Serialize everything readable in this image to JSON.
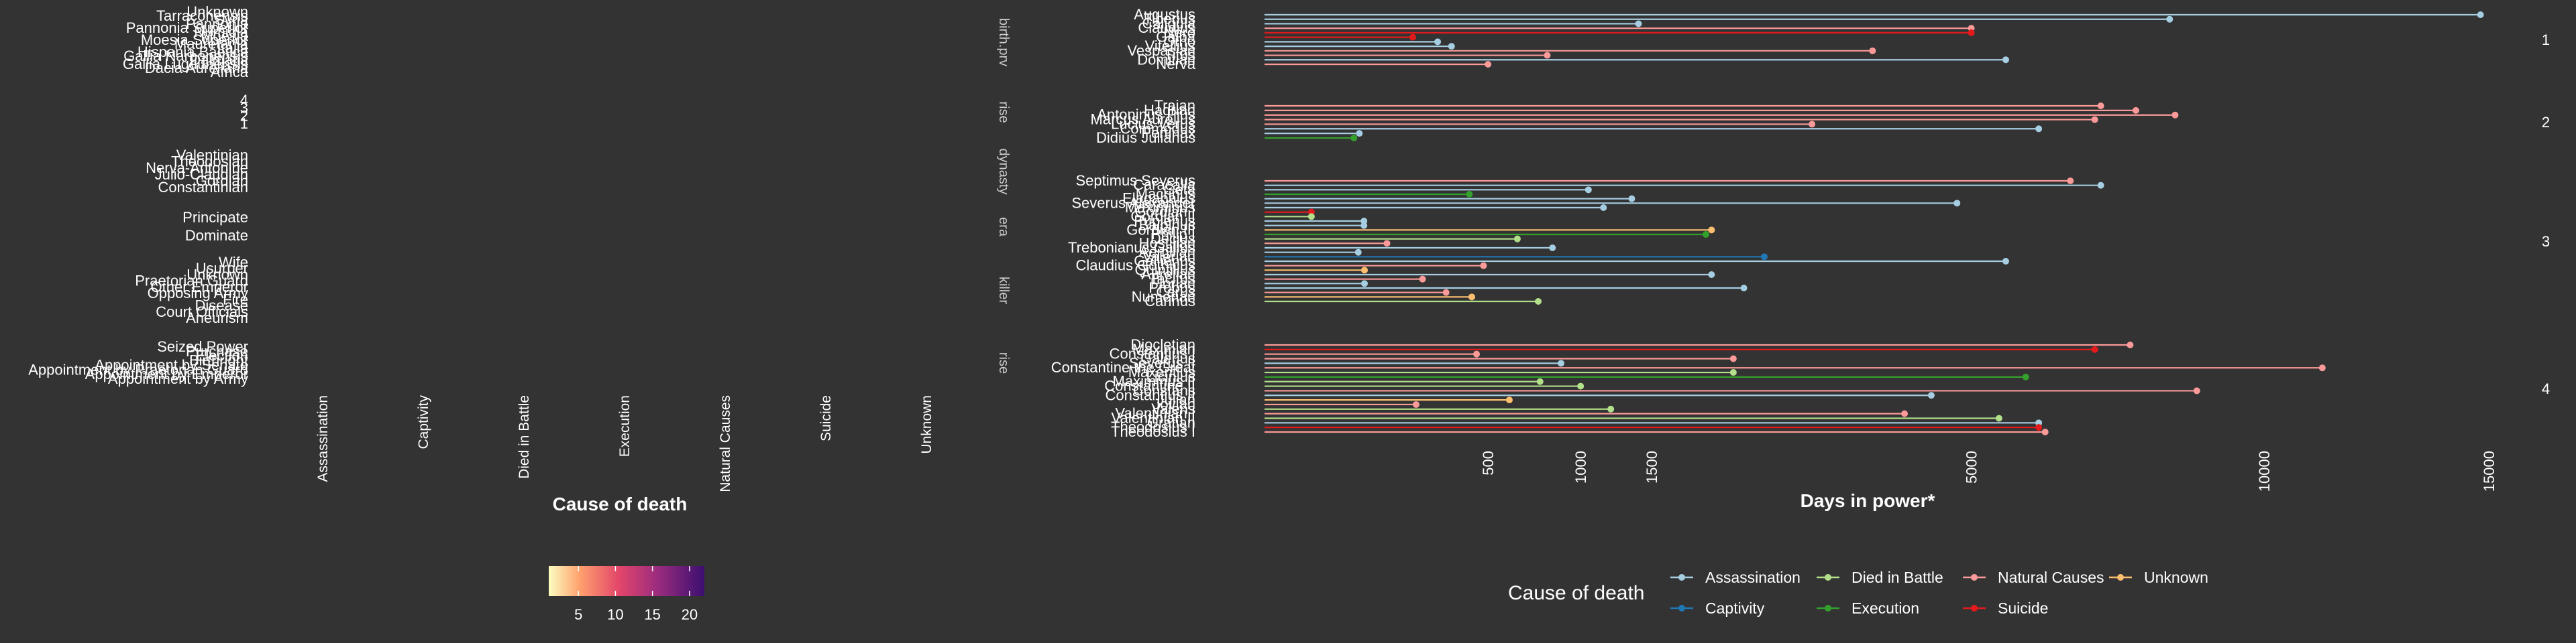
{
  "chart_data": [
    {
      "type": "heatmap",
      "xlabel": "Cause of death",
      "x_categories": [
        "Assassination",
        "Captivity",
        "Died in Battle",
        "Execution",
        "Natural Causes",
        "Suicide",
        "Unknown"
      ],
      "facets": [
        {
          "strip": "birth.prv",
          "labels": [
            "Unknown",
            "Tarraconensis",
            "Syria",
            "Pannonia",
            "Pannonia Superior",
            "Numidia",
            "Moesia",
            "Moesia Superior",
            "Mauretania",
            "Italia",
            "Hispania Baetica",
            "Gallia Narbonensis",
            "Dalmatia",
            "Gallia Lugdunensis",
            "Dacia Aureliana",
            "Africa"
          ]
        },
        {
          "strip": "rise",
          "labels": [
            "4",
            "3",
            "2",
            "1"
          ]
        },
        {
          "strip": "dynasty",
          "labels": [
            "Valentinian",
            "Theodosian",
            "Nerva-Antonine",
            "Julio-Claudian",
            "Gordian",
            "Constantinian"
          ]
        },
        {
          "strip": "era",
          "labels": [
            "Principate",
            "Dominate"
          ]
        },
        {
          "strip": "killer",
          "labels": [
            "Wife",
            "Usurper",
            "Unknown",
            "Praetorian Guard",
            "Other Emperor",
            "Opposing Army",
            "Fire",
            "Disease",
            "Court Officials",
            "Aneurism"
          ]
        },
        {
          "strip": "rise",
          "labels": [
            "Seized Power",
            "Purchase",
            "Election",
            "Birthright",
            "Appointment by Senate",
            "Appointment by Praetorian Guard",
            "Appointment by Emperor",
            "Appointment by Army"
          ]
        }
      ],
      "colorbar": {
        "ticks": [
          5,
          10,
          15,
          20
        ],
        "min": 1,
        "max": 22
      }
    },
    {
      "type": "lollipop",
      "xlabel": "Days in power*",
      "x_scale": "sqrt",
      "x_ticks": [
        500,
        1000,
        1500,
        5000,
        10000,
        15000
      ],
      "x_range": [
        0,
        15500
      ],
      "legend_title": "Cause of death",
      "categories": [
        {
          "name": "Assassination",
          "color": "#a6cee3"
        },
        {
          "name": "Captivity",
          "color": "#1f78b4"
        },
        {
          "name": "Died in Battle",
          "color": "#b2df8a"
        },
        {
          "name": "Execution",
          "color": "#33a02c"
        },
        {
          "name": "Natural Causes",
          "color": "#fb9a99"
        },
        {
          "name": "Suicide",
          "color": "#e31a1c"
        },
        {
          "name": "Unknown",
          "color": "#fdbf6f"
        }
      ],
      "facets": [
        {
          "strip": "1",
          "emperors": [
            {
              "name": "Augustus",
              "days": 14800,
              "cause": "Assassination"
            },
            {
              "name": "Tiberius",
              "days": 8200,
              "cause": "Assassination"
            },
            {
              "name": "Caligula",
              "days": 1400,
              "cause": "Assassination"
            },
            {
              "name": "Claudius",
              "days": 5000,
              "cause": "Natural Causes"
            },
            {
              "name": "Nero",
              "days": 5000,
              "cause": "Suicide"
            },
            {
              "name": "Galba",
              "days": 220,
              "cause": "Suicide"
            },
            {
              "name": "Otho",
              "days": 300,
              "cause": "Assassination"
            },
            {
              "name": "Vitellius",
              "days": 350,
              "cause": "Assassination"
            },
            {
              "name": "Vespasian",
              "days": 3700,
              "cause": "Natural Causes"
            },
            {
              "name": "Titus",
              "days": 800,
              "cause": "Natural Causes"
            },
            {
              "name": "Domitian",
              "days": 5500,
              "cause": "Assassination"
            },
            {
              "name": "Nerva",
              "days": 500,
              "cause": "Natural Causes"
            }
          ]
        },
        {
          "strip": "2",
          "emperors": [
            {
              "name": "Trajan",
              "days": 7000,
              "cause": "Natural Causes"
            },
            {
              "name": "Hadrian",
              "days": 7600,
              "cause": "Natural Causes"
            },
            {
              "name": "Antoninus Pius",
              "days": 8300,
              "cause": "Natural Causes"
            },
            {
              "name": "Marcus Aurelius",
              "days": 6900,
              "cause": "Natural Causes"
            },
            {
              "name": "Lucius Verus",
              "days": 3000,
              "cause": "Natural Causes"
            },
            {
              "name": "Commodus",
              "days": 6000,
              "cause": "Assassination"
            },
            {
              "name": "Pertinax",
              "days": 90,
              "cause": "Assassination"
            },
            {
              "name": "Didius Julianus",
              "days": 80,
              "cause": "Execution"
            }
          ]
        },
        {
          "strip": "3",
          "emperors": [
            {
              "name": "Septimus Severus",
              "days": 6500,
              "cause": "Natural Causes"
            },
            {
              "name": "Caracalla",
              "days": 7000,
              "cause": "Assassination"
            },
            {
              "name": "Geta",
              "days": 1050,
              "cause": "Assassination"
            },
            {
              "name": "Macrinus",
              "days": 420,
              "cause": "Execution"
            },
            {
              "name": "Elagabalus",
              "days": 1350,
              "cause": "Assassination"
            },
            {
              "name": "Severus Alexander",
              "days": 4800,
              "cause": "Assassination"
            },
            {
              "name": "Maximinus",
              "days": 1150,
              "cause": "Assassination"
            },
            {
              "name": "Gordian I",
              "days": 22,
              "cause": "Suicide"
            },
            {
              "name": "Gordian II",
              "days": 22,
              "cause": "Died in Battle"
            },
            {
              "name": "Pupienus",
              "days": 99,
              "cause": "Assassination"
            },
            {
              "name": "Balbinus",
              "days": 99,
              "cause": "Assassination"
            },
            {
              "name": "Gordian III",
              "days": 2000,
              "cause": "Unknown"
            },
            {
              "name": "Philip I",
              "days": 1950,
              "cause": "Execution"
            },
            {
              "name": "Decius",
              "days": 640,
              "cause": "Died in Battle"
            },
            {
              "name": "Hostilian",
              "days": 150,
              "cause": "Natural Causes"
            },
            {
              "name": "Trebonianus Gallus",
              "days": 830,
              "cause": "Assassination"
            },
            {
              "name": "Aemilian",
              "days": 88,
              "cause": "Assassination"
            },
            {
              "name": "Valerian",
              "days": 2500,
              "cause": "Captivity"
            },
            {
              "name": "Gallienus",
              "days": 5500,
              "cause": "Assassination"
            },
            {
              "name": "Claudius Gothicus",
              "days": 480,
              "cause": "Natural Causes"
            },
            {
              "name": "Quintillus",
              "days": 100,
              "cause": "Unknown"
            },
            {
              "name": "Aurelian",
              "days": 2000,
              "cause": "Assassination"
            },
            {
              "name": "Tacitus",
              "days": 250,
              "cause": "Natural Causes"
            },
            {
              "name": "Florian",
              "days": 100,
              "cause": "Assassination"
            },
            {
              "name": "Probus",
              "days": 2300,
              "cause": "Assassination"
            },
            {
              "name": "Carus",
              "days": 330,
              "cause": "Natural Causes"
            },
            {
              "name": "Numerian",
              "days": 430,
              "cause": "Unknown"
            },
            {
              "name": "Carinus",
              "days": 750,
              "cause": "Died in Battle"
            }
          ]
        },
        {
          "strip": "4",
          "emperors": [
            {
              "name": "Diocletian",
              "days": 7500,
              "cause": "Natural Causes"
            },
            {
              "name": "Maximian",
              "days": 6900,
              "cause": "Suicide"
            },
            {
              "name": "Constantius I",
              "days": 450,
              "cause": "Natural Causes"
            },
            {
              "name": "Galerius",
              "days": 2200,
              "cause": "Natural Causes"
            },
            {
              "name": "Severus II",
              "days": 880,
              "cause": "Assassination"
            },
            {
              "name": "Constantine the Great",
              "days": 11200,
              "cause": "Natural Causes"
            },
            {
              "name": "Maxentius",
              "days": 2200,
              "cause": "Died in Battle"
            },
            {
              "name": "Licinius",
              "days": 5800,
              "cause": "Execution"
            },
            {
              "name": "Maximinus II",
              "days": 760,
              "cause": "Died in Battle"
            },
            {
              "name": "Constantine II",
              "days": 1000,
              "cause": "Died in Battle"
            },
            {
              "name": "Constans",
              "days": 8700,
              "cause": "Natural Causes"
            },
            {
              "name": "Constantius II",
              "days": 4450,
              "cause": "Assassination"
            },
            {
              "name": "Julian",
              "days": 600,
              "cause": "Unknown"
            },
            {
              "name": "Jovian",
              "days": 230,
              "cause": "Natural Causes"
            },
            {
              "name": "Valens",
              "days": 1200,
              "cause": "Died in Battle"
            },
            {
              "name": "Valentinian I",
              "days": 4100,
              "cause": "Natural Causes"
            },
            {
              "name": "Valentinian II",
              "days": 5400,
              "cause": "Died in Battle"
            },
            {
              "name": "Gratian",
              "days": 6000,
              "cause": "Assassination"
            },
            {
              "name": "Theodosius I",
              "days": 6000,
              "cause": "Suicide"
            },
            {
              "name": "Theodosius I ",
              "days": 6100,
              "cause": "Natural Causes"
            }
          ]
        }
      ]
    }
  ],
  "footnote": "*"
}
